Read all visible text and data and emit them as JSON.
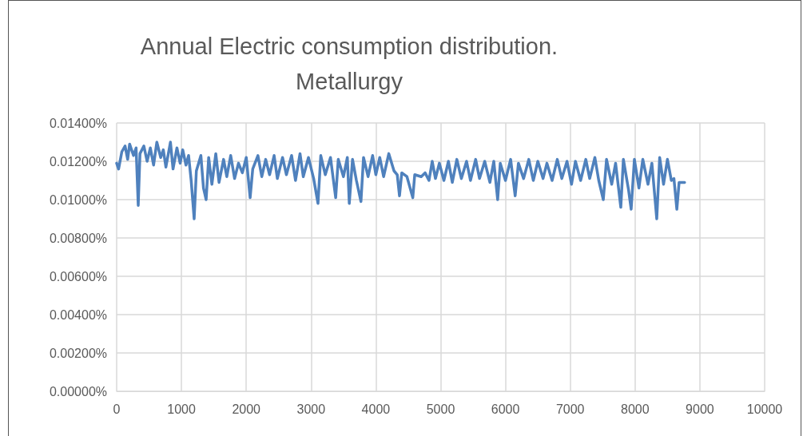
{
  "chart_data": {
    "type": "line",
    "title": "Annual Electric consumption distribution. Metallurgy",
    "xlim": [
      0,
      10000
    ],
    "xticks": [
      0,
      1000,
      2000,
      3000,
      4000,
      5000,
      6000,
      7000,
      8000,
      9000,
      10000
    ],
    "ylim": [
      0,
      0.014
    ],
    "yticks": [
      {
        "value": 0,
        "label": "0.00000%"
      },
      {
        "value": 0.002,
        "label": "0.00200%"
      },
      {
        "value": 0.004,
        "label": "0.00400%"
      },
      {
        "value": 0.006,
        "label": "0.00600%"
      },
      {
        "value": 0.008,
        "label": "0.00800%"
      },
      {
        "value": 0.01,
        "label": "0.01000%"
      },
      {
        "value": 0.012,
        "label": "0.01200%"
      },
      {
        "value": 0.014,
        "label": "0.01400%"
      }
    ],
    "grid": true,
    "marker": "none",
    "line_style": "solid",
    "series": [
      {
        "color": "#4f81bd",
        "x": [
          0,
          30,
          80,
          130,
          170,
          200,
          260,
          300,
          333,
          360,
          420,
          470,
          520,
          570,
          620,
          680,
          720,
          760,
          830,
          870,
          930,
          980,
          1020,
          1070,
          1110,
          1150,
          1196,
          1230,
          1300,
          1340,
          1381,
          1420,
          1470,
          1530,
          1580,
          1650,
          1700,
          1760,
          1820,
          1880,
          1940,
          2000,
          2060,
          2100,
          2180,
          2240,
          2300,
          2360,
          2430,
          2480,
          2560,
          2620,
          2700,
          2760,
          2830,
          2880,
          2960,
          3040,
          3107,
          3150,
          3220,
          3300,
          3380,
          3420,
          3500,
          3560,
          3590,
          3640,
          3700,
          3770,
          3810,
          3880,
          3950,
          4000,
          4060,
          4120,
          4200,
          4280,
          4330,
          4365,
          4400,
          4480,
          4570,
          4600,
          4700,
          4760,
          4820,
          4870,
          4920,
          4980,
          5050,
          5120,
          5180,
          5250,
          5320,
          5400,
          5460,
          5540,
          5600,
          5680,
          5760,
          5820,
          5880,
          5920,
          6000,
          6080,
          6150,
          6200,
          6280,
          6360,
          6430,
          6500,
          6580,
          6640,
          6720,
          6800,
          6870,
          6950,
          7020,
          7080,
          7160,
          7240,
          7300,
          7380,
          7440,
          7510,
          7560,
          7640,
          7700,
          7780,
          7820,
          7900,
          7940,
          7990,
          8060,
          8120,
          8200,
          8260,
          8335,
          8380,
          8440,
          8500,
          8560,
          8600,
          8645,
          8680,
          8765
        ],
        "values": [
          0.0119,
          0.0116,
          0.0125,
          0.0128,
          0.0121,
          0.0129,
          0.0123,
          0.0127,
          0.0097,
          0.0124,
          0.0128,
          0.012,
          0.0127,
          0.0118,
          0.013,
          0.0122,
          0.0126,
          0.0117,
          0.013,
          0.0116,
          0.0127,
          0.0119,
          0.0126,
          0.0118,
          0.0123,
          0.011,
          0.009,
          0.0115,
          0.0123,
          0.0106,
          0.01,
          0.0122,
          0.0108,
          0.0124,
          0.0109,
          0.0121,
          0.0112,
          0.0123,
          0.0111,
          0.0119,
          0.0114,
          0.0122,
          0.0101,
          0.0116,
          0.0123,
          0.0112,
          0.0121,
          0.0113,
          0.0123,
          0.0111,
          0.0122,
          0.0113,
          0.0123,
          0.011,
          0.0124,
          0.0112,
          0.0122,
          0.0111,
          0.0098,
          0.0123,
          0.0113,
          0.0122,
          0.0101,
          0.0121,
          0.0112,
          0.0122,
          0.0098,
          0.0121,
          0.011,
          0.0099,
          0.0122,
          0.0112,
          0.0123,
          0.0113,
          0.0122,
          0.0112,
          0.0124,
          0.0115,
          0.0113,
          0.0102,
          0.0114,
          0.0112,
          0.0101,
          0.0113,
          0.0112,
          0.0114,
          0.011,
          0.012,
          0.0111,
          0.0119,
          0.011,
          0.012,
          0.0109,
          0.0121,
          0.0111,
          0.012,
          0.011,
          0.0121,
          0.0111,
          0.012,
          0.0109,
          0.012,
          0.01,
          0.0119,
          0.011,
          0.0121,
          0.0102,
          0.0119,
          0.0111,
          0.0121,
          0.011,
          0.012,
          0.0111,
          0.0119,
          0.011,
          0.0121,
          0.0111,
          0.012,
          0.0108,
          0.012,
          0.011,
          0.0121,
          0.0111,
          0.0122,
          0.011,
          0.01,
          0.0121,
          0.0108,
          0.0119,
          0.0096,
          0.0121,
          0.0105,
          0.0095,
          0.0121,
          0.0106,
          0.0121,
          0.0108,
          0.0119,
          0.009,
          0.0122,
          0.0108,
          0.0121,
          0.011,
          0.0111,
          0.0095,
          0.0109,
          0.0109
        ]
      }
    ]
  }
}
